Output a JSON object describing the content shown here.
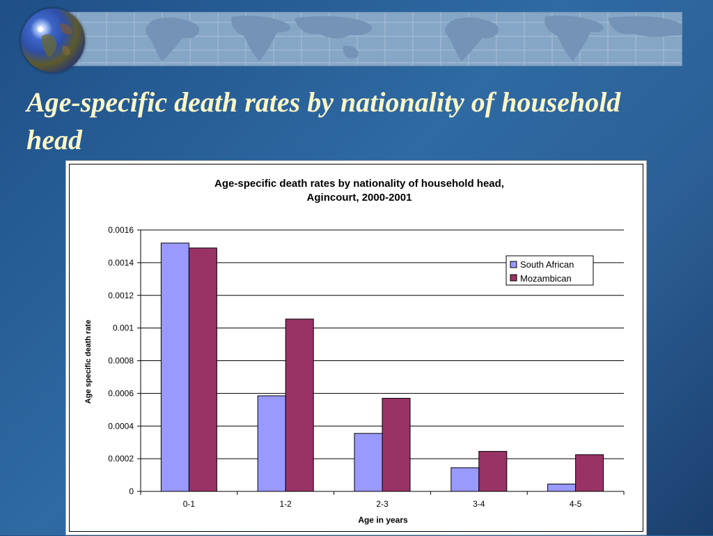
{
  "slide": {
    "title": "Age-specific death rates by nationality of household head"
  },
  "colors": {
    "south_african": "#9999ff",
    "mozambican": "#993366",
    "title_text": "#fbf6c8"
  },
  "chart_data": {
    "type": "bar",
    "title_line1": "Age-specific death rates by nationality of household head,",
    "title_line2": "Agincourt, 2000-2001",
    "xlabel": "Age in years",
    "ylabel": "Age specific death rate",
    "categories": [
      "0-1",
      "1-2",
      "2-3",
      "3-4",
      "4-5"
    ],
    "series": [
      {
        "name": "South African",
        "values": [
          0.00152,
          0.000585,
          0.000355,
          0.000145,
          4.5e-05
        ]
      },
      {
        "name": "Mozambican",
        "values": [
          0.00149,
          0.001055,
          0.00057,
          0.000245,
          0.000225
        ]
      }
    ],
    "ylim": [
      0,
      0.0016
    ],
    "yticks": [
      "0",
      "0.0002",
      "0.0004",
      "0.0006",
      "0.0008",
      "0.001",
      "0.0012",
      "0.0014",
      "0.0016"
    ],
    "grid": true,
    "legend_position": "top-right"
  }
}
